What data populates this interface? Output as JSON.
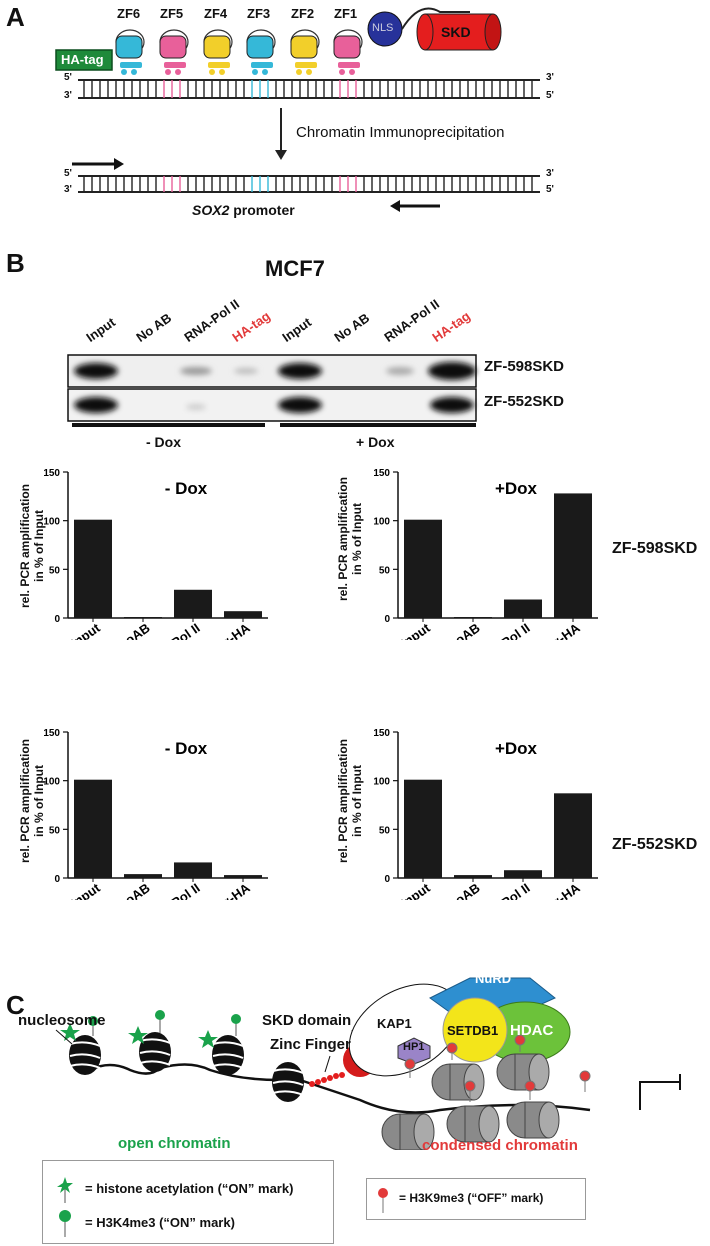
{
  "panelA": {
    "letter": "A",
    "zf_labels": [
      "ZF6",
      "ZF5",
      "ZF4",
      "ZF3",
      "ZF2",
      "ZF1"
    ],
    "nls": "NLS",
    "skd": "SKD",
    "hatag": "HA-tag",
    "strand_top": [
      "5'",
      "3'"
    ],
    "strand_bottom": [
      "3'",
      "5'"
    ],
    "method": "Chromatin Immunoprecipitation",
    "promoter_gene": "SOX2",
    "promoter_word": " promoter",
    "colors": {
      "zf_cyan": "#35b8d8",
      "zf_pink": "#e8609a",
      "zf_yellow": "#f2cf2a",
      "nls": "#27329a",
      "skd": "#e41e1e",
      "hatag": "#1e8a3a"
    }
  },
  "panelB": {
    "letter": "B",
    "cell_line": "MCF7",
    "gel_lanes": [
      "Input",
      "No AB",
      "RNA-Pol II",
      "HA-tag",
      "Input",
      "No AB",
      "RNA-Pol II",
      "HA-tag"
    ],
    "gel_rows": [
      "ZF-598SKD",
      "ZF-552SKD"
    ],
    "conditions": [
      "- Dox",
      "+ Dox"
    ]
  },
  "charts": {
    "ylabel_line1": "rel. PCR amplification",
    "ylabel_line2": "in % of Input",
    "construct_labels": [
      "ZF-598SKD",
      "ZF-552SKD"
    ]
  },
  "chart_data": [
    {
      "type": "bar",
      "title": "- Dox",
      "categories": [
        "Input",
        "noAB",
        "α-Pol II",
        "α-HA"
      ],
      "values": [
        101,
        1,
        29,
        7
      ],
      "ylim": [
        0,
        150
      ],
      "yticks": [
        0,
        50,
        100,
        150
      ],
      "ylabel": "rel. PCR amplification in % of Input"
    },
    {
      "type": "bar",
      "title": "+Dox",
      "categories": [
        "Input",
        "noAB",
        "α-Pol II",
        "α-HA"
      ],
      "values": [
        101,
        1,
        19,
        128
      ],
      "ylim": [
        0,
        150
      ],
      "yticks": [
        0,
        50,
        100,
        150
      ],
      "ylabel": "rel. PCR amplification in % of Input"
    },
    {
      "type": "bar",
      "title": "- Dox",
      "categories": [
        "Input",
        "noAB",
        "α-Pol II",
        "α-HA"
      ],
      "values": [
        101,
        4,
        16,
        3
      ],
      "ylim": [
        0,
        150
      ],
      "yticks": [
        0,
        50,
        100,
        150
      ],
      "ylabel": "rel. PCR amplification in % of Input"
    },
    {
      "type": "bar",
      "title": "+Dox",
      "categories": [
        "Input",
        "noAB",
        "α-Pol II",
        "α-HA"
      ],
      "values": [
        101,
        3,
        8,
        87
      ],
      "ylim": [
        0,
        150
      ],
      "yticks": [
        0,
        50,
        100,
        150
      ],
      "ylabel": "rel. PCR amplification in % of Input"
    }
  ],
  "panelC": {
    "letter": "C",
    "nucleosome": "nucleosome",
    "skd_domain": "SKD domain",
    "zinc_finger": "Zinc Finger",
    "kap1": "KAP1",
    "nurd": "NuRD",
    "setdb1": "SETDB1",
    "hdac": "HDAC",
    "hp1": "HP1",
    "open": "open chromatin",
    "condensed": "condensed chromatin",
    "legend": [
      "= histone acetylation (“ON” mark)",
      "= H3K4me3 (“ON” mark)",
      "= H3K9me3 (“OFF” mark)"
    ],
    "colors": {
      "open": "#1aa24b",
      "condensed": "#e23a3a",
      "nurd": "#2e8fd0",
      "setdb1": "#f3e51a",
      "hdac": "#6cc23a",
      "hp1": "#9a84c8"
    }
  }
}
